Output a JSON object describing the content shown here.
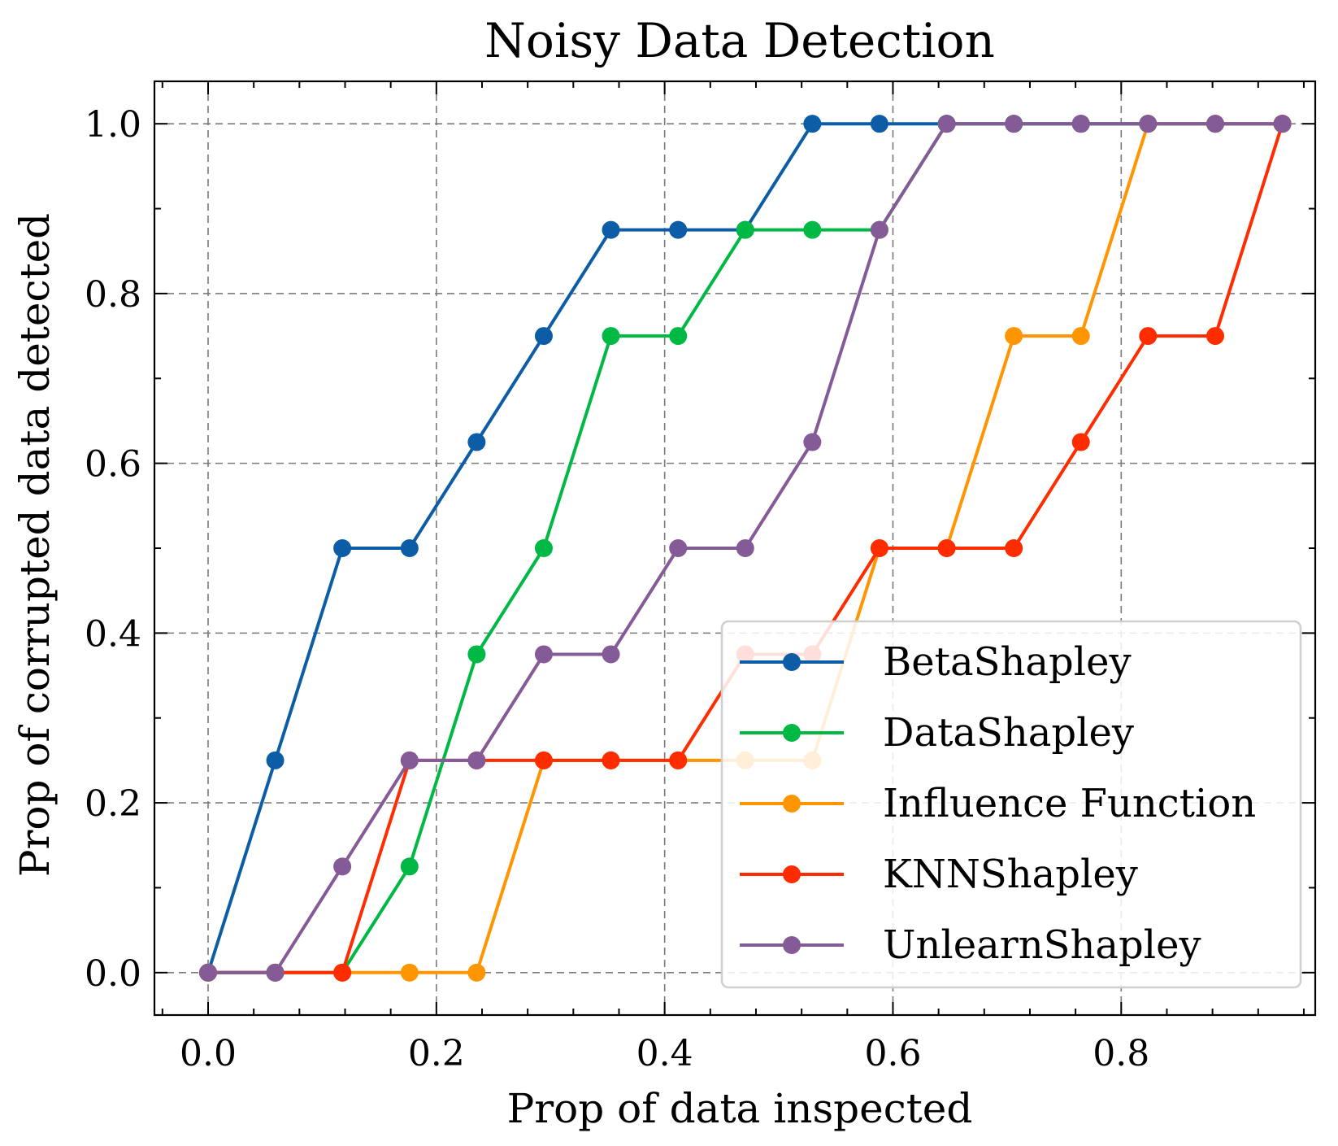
{
  "chart_data": {
    "type": "line",
    "title": "Noisy Data Detection",
    "xlabel": "Prop of data inspected",
    "ylabel": "Prop of corrupted data detected",
    "xlim": [
      -0.047,
      0.97
    ],
    "ylim": [
      -0.05,
      1.05
    ],
    "xticks": [
      0.0,
      0.2,
      0.4,
      0.6,
      0.8
    ],
    "xtick_labels": [
      "0.0",
      "0.2",
      "0.4",
      "0.6",
      "0.8"
    ],
    "yticks": [
      0.0,
      0.2,
      0.4,
      0.6,
      0.8,
      1.0
    ],
    "ytick_labels": [
      "0.0",
      "0.2",
      "0.4",
      "0.6",
      "0.8",
      "1.0"
    ],
    "grid": true,
    "legend_position": "lower-right",
    "x": [
      0.0,
      0.0588,
      0.1176,
      0.1765,
      0.2353,
      0.2941,
      0.3529,
      0.4118,
      0.4706,
      0.5294,
      0.5882,
      0.6471,
      0.7059,
      0.7647,
      0.8235,
      0.8824,
      0.9412
    ],
    "series": [
      {
        "name": "BetaShapley",
        "color": "#0C5DA5",
        "values": [
          0.0,
          0.25,
          0.5,
          0.5,
          0.625,
          0.75,
          0.875,
          0.875,
          0.875,
          1.0,
          1.0,
          1.0,
          1.0,
          1.0,
          1.0,
          1.0,
          1.0
        ]
      },
      {
        "name": "DataShapley",
        "color": "#00B945",
        "values": [
          0.0,
          0.0,
          0.0,
          0.125,
          0.375,
          0.5,
          0.75,
          0.75,
          0.875,
          0.875,
          0.875,
          1.0,
          1.0,
          1.0,
          1.0,
          1.0,
          1.0
        ]
      },
      {
        "name": "Influence Function",
        "color": "#FF9500",
        "values": [
          0.0,
          0.0,
          0.0,
          0.0,
          0.0,
          0.25,
          0.25,
          0.25,
          0.25,
          0.25,
          0.5,
          0.5,
          0.75,
          0.75,
          1.0,
          1.0,
          1.0
        ]
      },
      {
        "name": "KNNShapley",
        "color": "#FF2C00",
        "values": [
          0.0,
          0.0,
          0.0,
          0.25,
          0.25,
          0.25,
          0.25,
          0.25,
          0.375,
          0.375,
          0.5,
          0.5,
          0.5,
          0.625,
          0.75,
          0.75,
          1.0
        ]
      },
      {
        "name": "UnlearnShapley",
        "color": "#845B97",
        "values": [
          0.0,
          0.0,
          0.125,
          0.25,
          0.25,
          0.375,
          0.375,
          0.5,
          0.5,
          0.625,
          0.875,
          1.0,
          1.0,
          1.0,
          1.0,
          1.0,
          1.0
        ]
      }
    ]
  }
}
